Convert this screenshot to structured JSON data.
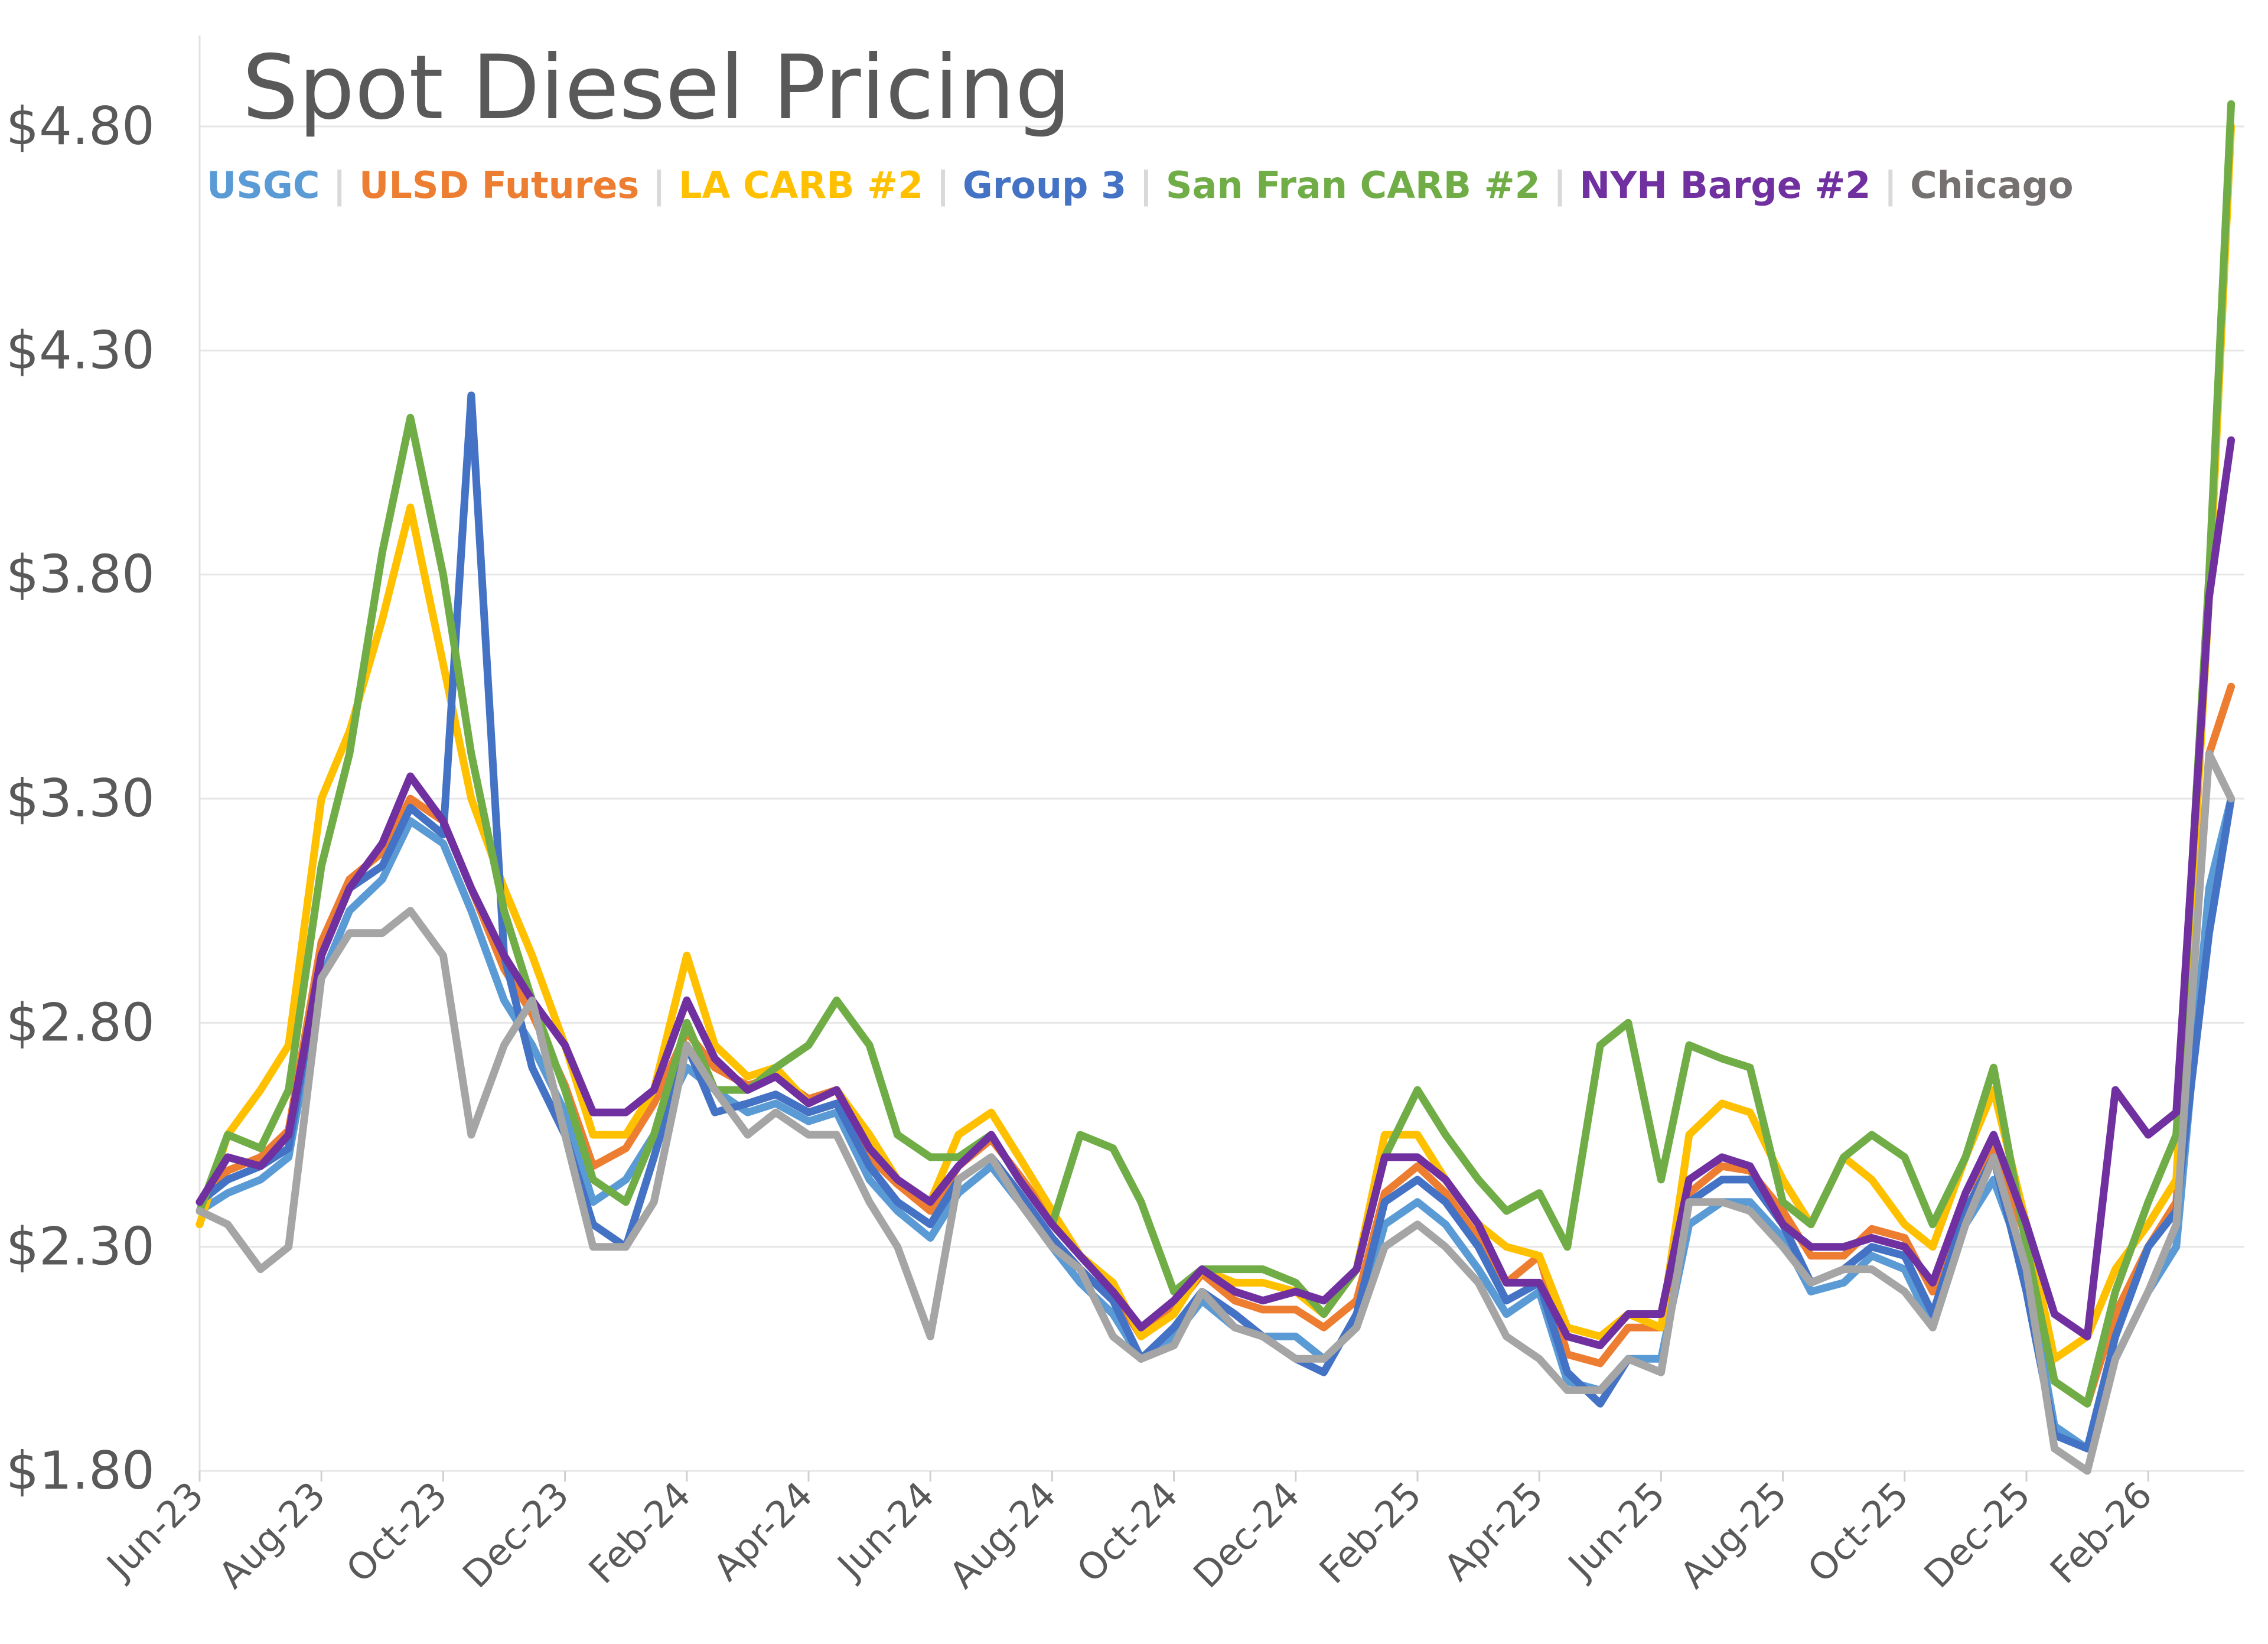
{
  "chart_data": {
    "type": "line",
    "title": "Spot Diesel Pricing",
    "xlabel": "",
    "ylabel": "",
    "ylim": [
      1.8,
      4.8
    ],
    "yticks": [
      "$1.80",
      "$2.30",
      "$2.80",
      "$3.30",
      "$3.80",
      "$4.30",
      "$4.80"
    ],
    "ytick_values": [
      1.8,
      2.3,
      2.8,
      3.3,
      3.8,
      4.3,
      4.8
    ],
    "xticks": [
      "Jun-23",
      "Aug-23",
      "Oct-23",
      "Dec-23",
      "Feb-24",
      "Apr-24",
      "Jun-24",
      "Aug-24",
      "Oct-24",
      "Dec-24",
      "Feb-25",
      "Apr-25",
      "Jun-25",
      "Aug-25",
      "Oct-25",
      "Dec-25",
      "Feb-26"
    ],
    "grid": "horizontal",
    "legend_position": "top",
    "x": [
      "2023-06-01",
      "2023-06-15",
      "2023-07-01",
      "2023-07-15",
      "2023-08-01",
      "2023-08-15",
      "2023-09-01",
      "2023-09-15",
      "2023-10-01",
      "2023-10-15",
      "2023-11-01",
      "2023-11-15",
      "2023-12-01",
      "2023-12-15",
      "2024-01-01",
      "2024-01-15",
      "2024-02-01",
      "2024-02-15",
      "2024-03-01",
      "2024-03-15",
      "2024-04-01",
      "2024-04-15",
      "2024-05-01",
      "2024-05-15",
      "2024-06-01",
      "2024-06-15",
      "2024-07-01",
      "2024-07-15",
      "2024-08-01",
      "2024-08-15",
      "2024-09-01",
      "2024-09-15",
      "2024-10-01",
      "2024-10-15",
      "2024-11-01",
      "2024-11-15",
      "2024-12-01",
      "2024-12-15",
      "2025-01-01",
      "2025-01-15",
      "2025-02-01",
      "2025-02-15",
      "2025-03-01",
      "2025-03-15",
      "2025-04-01",
      "2025-04-15",
      "2025-05-01",
      "2025-05-15",
      "2025-06-01",
      "2025-06-15",
      "2025-07-01",
      "2025-07-15",
      "2025-08-01",
      "2025-08-15",
      "2025-09-01",
      "2025-09-15",
      "2025-10-01",
      "2025-10-15",
      "2025-11-01",
      "2025-11-15",
      "2025-12-01",
      "2025-12-15",
      "2026-01-01",
      "2026-01-15",
      "2026-02-01",
      "2026-02-15",
      "2026-03-01",
      "2026-03-12"
    ],
    "series": [
      {
        "name": "USGC",
        "color": "#5B9BD5",
        "values": [
          2.38,
          2.42,
          2.45,
          2.5,
          2.9,
          3.05,
          3.12,
          3.25,
          3.2,
          3.05,
          2.85,
          2.75,
          2.6,
          2.4,
          2.45,
          2.55,
          2.7,
          2.65,
          2.6,
          2.62,
          2.58,
          2.6,
          2.45,
          2.38,
          2.32,
          2.42,
          2.48,
          2.4,
          2.3,
          2.22,
          2.15,
          2.05,
          2.1,
          2.18,
          2.12,
          2.1,
          2.1,
          2.05,
          2.12,
          2.35,
          2.4,
          2.35,
          2.25,
          2.15,
          2.2,
          2.0,
          1.98,
          2.05,
          2.05,
          2.35,
          2.4,
          2.4,
          2.32,
          2.2,
          2.22,
          2.28,
          2.25,
          2.12,
          2.35,
          2.45,
          2.25,
          1.9,
          1.85,
          2.05,
          2.2,
          2.3,
          3.1,
          3.3
        ]
      },
      {
        "name": "ULSD Futures",
        "color": "#ED7D31",
        "values": [
          2.4,
          2.47,
          2.5,
          2.56,
          2.98,
          3.12,
          3.18,
          3.3,
          3.25,
          3.1,
          2.92,
          2.82,
          2.66,
          2.48,
          2.52,
          2.62,
          2.78,
          2.7,
          2.66,
          2.68,
          2.63,
          2.65,
          2.5,
          2.44,
          2.38,
          2.48,
          2.54,
          2.46,
          2.36,
          2.28,
          2.2,
          2.1,
          2.16,
          2.24,
          2.18,
          2.16,
          2.16,
          2.12,
          2.18,
          2.42,
          2.48,
          2.42,
          2.32,
          2.22,
          2.28,
          2.06,
          2.04,
          2.12,
          2.12,
          2.42,
          2.48,
          2.47,
          2.38,
          2.28,
          2.28,
          2.34,
          2.32,
          2.2,
          2.42,
          2.52,
          2.32,
          2.0,
          1.95,
          2.15,
          2.3,
          2.4,
          3.4,
          3.55
        ]
      },
      {
        "name": "LA CARB #2",
        "color": "#FFC000",
        "values": [
          2.35,
          2.55,
          2.65,
          2.75,
          3.3,
          3.45,
          3.7,
          3.95,
          3.6,
          3.3,
          3.1,
          2.95,
          2.75,
          2.55,
          2.55,
          2.65,
          2.95,
          2.75,
          2.68,
          2.7,
          2.62,
          2.65,
          2.55,
          2.45,
          2.4,
          2.55,
          2.6,
          2.5,
          2.38,
          2.28,
          2.22,
          2.1,
          2.15,
          2.25,
          2.22,
          2.22,
          2.2,
          2.15,
          2.25,
          2.55,
          2.55,
          2.45,
          2.35,
          2.3,
          2.28,
          2.12,
          2.1,
          2.15,
          2.12,
          2.55,
          2.62,
          2.6,
          2.45,
          2.35,
          2.5,
          2.45,
          2.35,
          2.3,
          2.5,
          2.65,
          2.35,
          2.05,
          2.1,
          2.25,
          2.35,
          2.45,
          3.75,
          4.8
        ]
      },
      {
        "name": "Group 3",
        "color": "#4472C4",
        "values": [
          2.4,
          2.45,
          2.48,
          2.52,
          2.95,
          3.1,
          3.15,
          3.28,
          3.22,
          4.2,
          2.95,
          2.7,
          2.55,
          2.35,
          2.3,
          2.5,
          2.75,
          2.6,
          2.62,
          2.64,
          2.6,
          2.62,
          2.48,
          2.4,
          2.35,
          2.45,
          2.5,
          2.42,
          2.32,
          2.25,
          2.18,
          2.05,
          2.12,
          2.2,
          2.15,
          2.1,
          2.05,
          2.02,
          2.15,
          2.4,
          2.45,
          2.4,
          2.3,
          2.18,
          2.22,
          2.02,
          1.95,
          2.05,
          2.02,
          2.4,
          2.45,
          2.45,
          2.35,
          2.22,
          2.25,
          2.3,
          2.28,
          2.15,
          2.38,
          2.5,
          2.2,
          1.88,
          1.85,
          2.1,
          2.3,
          2.38,
          3.0,
          3.3
        ]
      },
      {
        "name": "San Fran CARB #2",
        "color": "#70AD47",
        "values": [
          2.38,
          2.55,
          2.52,
          2.65,
          3.15,
          3.4,
          3.85,
          4.15,
          3.8,
          3.4,
          3.05,
          2.85,
          2.65,
          2.45,
          2.4,
          2.55,
          2.8,
          2.65,
          2.65,
          2.7,
          2.75,
          2.85,
          2.75,
          2.55,
          2.5,
          2.5,
          2.55,
          2.45,
          2.35,
          2.55,
          2.52,
          2.4,
          2.2,
          2.25,
          2.25,
          2.25,
          2.22,
          2.15,
          2.25,
          2.5,
          2.65,
          2.55,
          2.45,
          2.38,
          2.42,
          2.3,
          2.75,
          2.8,
          2.45,
          2.75,
          2.72,
          2.7,
          2.4,
          2.35,
          2.5,
          2.55,
          2.5,
          2.35,
          2.5,
          2.7,
          2.3,
          2.0,
          1.95,
          2.2,
          2.4,
          2.55,
          3.8,
          4.85
        ]
      },
      {
        "name": "NYH Barge #2",
        "color": "#7030A0",
        "values": [
          2.4,
          2.5,
          2.48,
          2.55,
          2.95,
          3.1,
          3.2,
          3.35,
          3.25,
          3.1,
          2.95,
          2.85,
          2.75,
          2.6,
          2.6,
          2.65,
          2.85,
          2.72,
          2.65,
          2.68,
          2.62,
          2.65,
          2.52,
          2.45,
          2.4,
          2.48,
          2.55,
          2.45,
          2.35,
          2.28,
          2.2,
          2.12,
          2.18,
          2.25,
          2.2,
          2.18,
          2.2,
          2.18,
          2.25,
          2.5,
          2.5,
          2.45,
          2.35,
          2.22,
          2.22,
          2.1,
          2.08,
          2.15,
          2.15,
          2.45,
          2.5,
          2.48,
          2.35,
          2.3,
          2.3,
          2.32,
          2.3,
          2.22,
          2.42,
          2.55,
          2.35,
          2.15,
          2.1,
          2.65,
          2.55,
          2.6,
          3.75,
          4.1
        ]
      },
      {
        "name": "Chicago",
        "color": "#A5A5A5",
        "values": [
          2.38,
          2.35,
          2.25,
          2.3,
          2.9,
          3.0,
          3.0,
          3.05,
          2.95,
          2.55,
          2.75,
          2.85,
          2.55,
          2.3,
          2.3,
          2.4,
          2.75,
          2.65,
          2.55,
          2.6,
          2.55,
          2.55,
          2.4,
          2.3,
          2.1,
          2.45,
          2.5,
          2.4,
          2.3,
          2.25,
          2.1,
          2.05,
          2.08,
          2.2,
          2.12,
          2.1,
          2.05,
          2.05,
          2.12,
          2.3,
          2.35,
          2.3,
          2.22,
          2.1,
          2.05,
          1.98,
          1.98,
          2.05,
          2.02,
          2.4,
          2.4,
          2.38,
          2.3,
          2.22,
          2.25,
          2.25,
          2.2,
          2.12,
          2.35,
          2.5,
          2.25,
          1.85,
          1.8,
          2.05,
          2.2,
          2.35,
          3.4,
          3.3
        ]
      }
    ],
    "legend_separator": "|",
    "legend_label_color_chicago": "#767171"
  }
}
